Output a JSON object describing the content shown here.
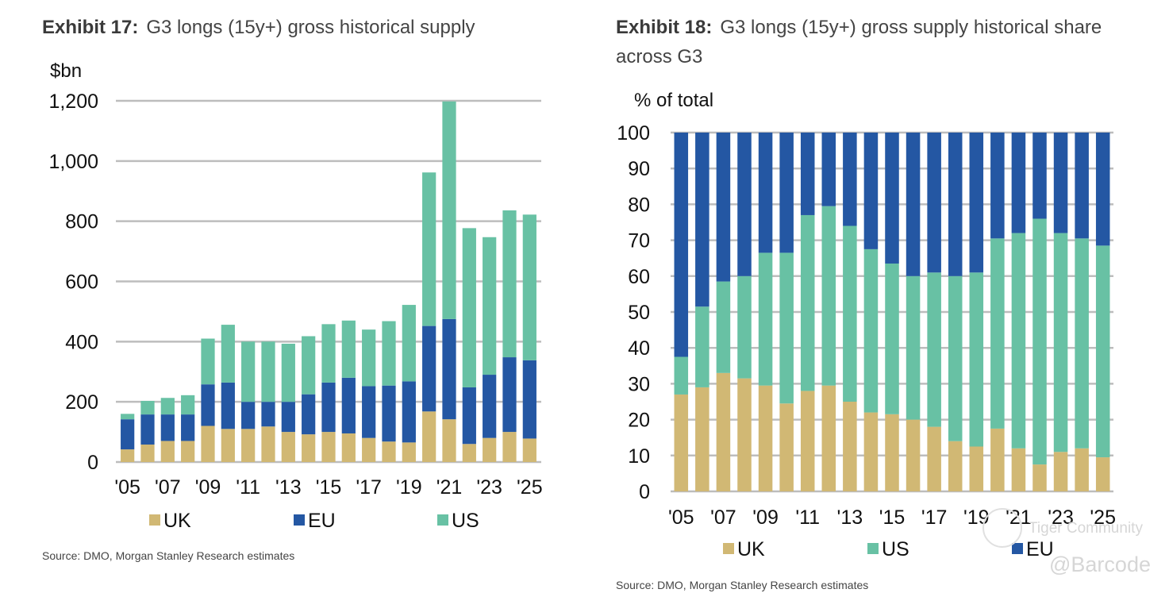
{
  "chart_data": [
    {
      "type": "bar",
      "stacked": true,
      "title_prefix": "Exhibit 17:",
      "title": "G3 longs (15y+) gross historical supply",
      "ylabel": "$bn",
      "xlabel": "",
      "ylim": [
        0,
        1200
      ],
      "yticks": [
        "0",
        "200",
        "400",
        "600",
        "800",
        "1,000",
        "1,200"
      ],
      "ytick_values": [
        0,
        200,
        400,
        600,
        800,
        1000,
        1200
      ],
      "categories": [
        "2005",
        "2006",
        "2007",
        "2008",
        "2009",
        "2010",
        "2011",
        "2012",
        "2013",
        "2014",
        "2015",
        "2016",
        "2017",
        "2018",
        "2019",
        "2020",
        "2021",
        "2022",
        "2023",
        "2024",
        "2025"
      ],
      "xtick_labels": [
        "'05",
        "",
        "'07",
        "",
        "'09",
        "",
        "'11",
        "",
        "'13",
        "",
        "'15",
        "",
        "'17",
        "",
        "'19",
        "",
        "'21",
        "",
        "'23",
        "",
        "'25"
      ],
      "grid": true,
      "legend_position": "bottom",
      "series": [
        {
          "name": "UK",
          "color": "#d1b874",
          "values": [
            42,
            58,
            70,
            70,
            120,
            110,
            110,
            118,
            100,
            92,
            100,
            95,
            80,
            68,
            65,
            168,
            142,
            60,
            80,
            100,
            78
          ]
        },
        {
          "name": "EU",
          "color": "#2457a3",
          "values": [
            100,
            100,
            88,
            88,
            138,
            154,
            90,
            82,
            100,
            133,
            164,
            185,
            172,
            186,
            203,
            284,
            333,
            188,
            210,
            248,
            260
          ]
        },
        {
          "name": "US",
          "color": "#68c1a4",
          "values": [
            18,
            45,
            55,
            64,
            152,
            192,
            200,
            200,
            193,
            193,
            194,
            190,
            188,
            214,
            254,
            510,
            723,
            529,
            457,
            488,
            484
          ]
        }
      ],
      "source": "Source: DMO, Morgan Stanley Research estimates"
    },
    {
      "type": "bar",
      "stacked": true,
      "title_prefix": "Exhibit 18:",
      "title": "G3 longs (15y+) gross supply historical share across G3",
      "ylabel": "% of total",
      "xlabel": "",
      "ylim": [
        0,
        100
      ],
      "yticks": [
        "0",
        "10",
        "20",
        "30",
        "40",
        "50",
        "60",
        "70",
        "80",
        "90",
        "100"
      ],
      "ytick_values": [
        0,
        10,
        20,
        30,
        40,
        50,
        60,
        70,
        80,
        90,
        100
      ],
      "categories": [
        "2005",
        "2006",
        "2007",
        "2008",
        "2009",
        "2010",
        "2011",
        "2012",
        "2013",
        "2014",
        "2015",
        "2016",
        "2017",
        "2018",
        "2019",
        "2020",
        "2021",
        "2022",
        "2023",
        "2024",
        "2025"
      ],
      "xtick_labels": [
        "'05",
        "",
        "'07",
        "",
        "'09",
        "",
        "'11",
        "",
        "'13",
        "",
        "'15",
        "",
        "'17",
        "",
        "'19",
        "",
        "'21",
        "",
        "'23",
        "",
        "'25"
      ],
      "grid": true,
      "legend_position": "bottom",
      "series": [
        {
          "name": "UK",
          "color": "#d1b874",
          "values": [
            27,
            29,
            33,
            31.5,
            29.5,
            24.5,
            28,
            29.5,
            25,
            22,
            21.5,
            20,
            18,
            14,
            12.5,
            17.5,
            12,
            7.5,
            11,
            12,
            9.5
          ]
        },
        {
          "name": "US",
          "color": "#68c1a4",
          "values": [
            10.5,
            22.5,
            25.5,
            28.5,
            37,
            42,
            49,
            50,
            49,
            45.5,
            42,
            40,
            43,
            46,
            48.5,
            53,
            60,
            68.5,
            61,
            58.5,
            59
          ]
        },
        {
          "name": "EU",
          "color": "#2457a3",
          "values": [
            62.5,
            48.5,
            41.5,
            40,
            33.5,
            33.5,
            23,
            20.5,
            26,
            32.5,
            36.5,
            40,
            39,
            40,
            39,
            29.5,
            28,
            24,
            28,
            29.5,
            31.5
          ]
        }
      ],
      "source": "Source: DMO, Morgan Stanley Research estimates"
    }
  ],
  "watermark": {
    "line1": "Tiger Community",
    "line2": "@Barcode"
  }
}
